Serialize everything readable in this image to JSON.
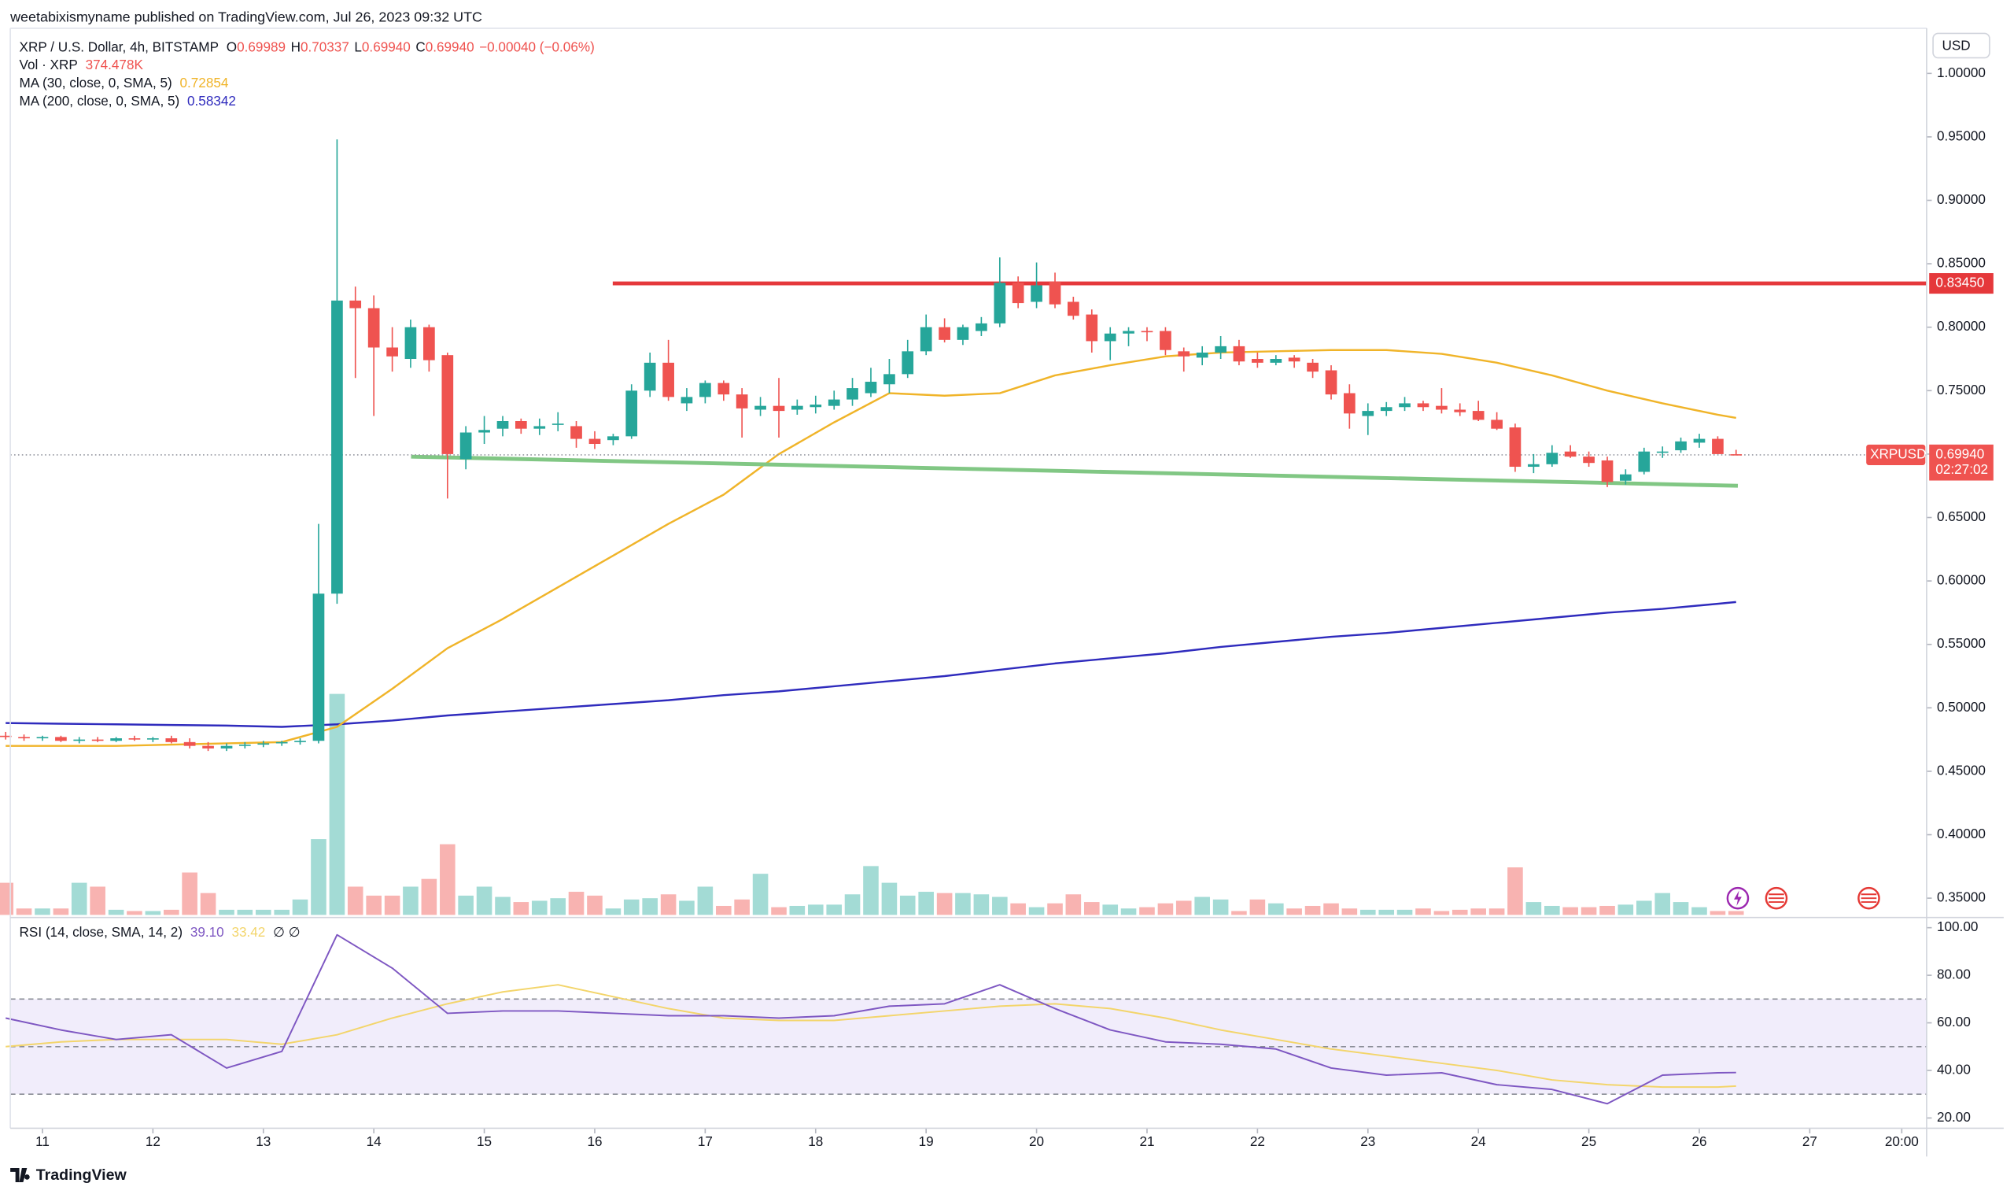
{
  "header": {
    "published": "weetabixismyname published on TradingView.com, Jul 26, 2023 09:32 UTC"
  },
  "footer": {
    "brand": "TradingView"
  },
  "chart_data": [
    {
      "type": "candlestick",
      "title": "XRP / U.S. Dollar, 4h, BITSTAMP",
      "ohlc_legend": [
        {
          "key": "O",
          "value": "0.69989"
        },
        {
          "key": "H",
          "value": "0.70337"
        },
        {
          "key": "L",
          "value": "0.69940"
        },
        {
          "key": "C",
          "value": "0.69940"
        }
      ],
      "change": "−0.00040 (−0.06%)",
      "currency": "USD",
      "up_color": "#26a69a",
      "down_color": "#ef5350",
      "xlim": [
        10.709,
        28.058
      ],
      "ylim": [
        0.3368,
        1.0356
      ],
      "yticks": [
        {
          "value": 0.35,
          "label": "0.35000"
        },
        {
          "value": 0.4,
          "label": "0.40000"
        },
        {
          "value": 0.45,
          "label": "0.45000"
        },
        {
          "value": 0.5,
          "label": "0.50000"
        },
        {
          "value": 0.55,
          "label": "0.55000"
        },
        {
          "value": 0.6,
          "label": "0.60000"
        },
        {
          "value": 0.65,
          "label": "0.65000"
        },
        {
          "value": 0.7,
          "label": "0.70000"
        },
        {
          "value": 0.75,
          "label": "0.75000"
        },
        {
          "value": 0.8,
          "label": "0.80000"
        },
        {
          "value": 0.85,
          "label": "0.85000"
        },
        {
          "value": 0.9,
          "label": "0.90000"
        },
        {
          "value": 0.95,
          "label": "0.95000"
        },
        {
          "value": 1,
          "label": "1.00000"
        }
      ],
      "x": [
        10.667,
        10.833,
        11,
        11.167,
        11.333,
        11.5,
        11.667,
        11.833,
        12,
        12.167,
        12.333,
        12.5,
        12.667,
        12.833,
        13,
        13.167,
        13.333,
        13.5,
        13.667,
        13.833,
        14,
        14.167,
        14.333,
        14.5,
        14.667,
        14.833,
        15,
        15.167,
        15.333,
        15.5,
        15.667,
        15.833,
        16,
        16.167,
        16.333,
        16.5,
        16.667,
        16.833,
        17,
        17.167,
        17.333,
        17.5,
        17.667,
        17.833,
        18,
        18.167,
        18.333,
        18.5,
        18.667,
        18.833,
        19,
        19.167,
        19.333,
        19.5,
        19.667,
        19.833,
        20,
        20.167,
        20.333,
        20.5,
        20.667,
        20.833,
        21,
        21.167,
        21.333,
        21.5,
        21.667,
        21.833,
        22,
        22.167,
        22.333,
        22.5,
        22.667,
        22.833,
        23,
        23.167,
        23.333,
        23.5,
        23.667,
        23.833,
        24,
        24.167,
        24.333,
        24.5,
        24.667,
        24.833,
        25,
        25.167,
        25.333,
        25.5,
        25.667,
        25.833,
        26,
        26.167,
        26.333
      ],
      "open": [
        0.478,
        0.477,
        0.476,
        0.477,
        0.474,
        0.475,
        0.474,
        0.476,
        0.475,
        0.476,
        0.473,
        0.47,
        0.468,
        0.47,
        0.471,
        0.472,
        0.473,
        0.474,
        0.59,
        0.821,
        0.815,
        0.784,
        0.775,
        0.8,
        0.778,
        0.696,
        0.717,
        0.72,
        0.726,
        0.72,
        0.723,
        0.722,
        0.712,
        0.711,
        0.714,
        0.75,
        0.772,
        0.74,
        0.745,
        0.756,
        0.747,
        0.735,
        0.738,
        0.735,
        0.737,
        0.738,
        0.743,
        0.748,
        0.755,
        0.763,
        0.781,
        0.8,
        0.79,
        0.797,
        0.803,
        0.835,
        0.82,
        0.836,
        0.82,
        0.81,
        0.789,
        0.795,
        0.797,
        0.797,
        0.781,
        0.776,
        0.78,
        0.785,
        0.775,
        0.772,
        0.776,
        0.772,
        0.766,
        0.748,
        0.73,
        0.734,
        0.737,
        0.74,
        0.738,
        0.735,
        0.734,
        0.727,
        0.721,
        0.69,
        0.692,
        0.702,
        0.698,
        0.695,
        0.679,
        0.686,
        0.702,
        0.703,
        0.709,
        0.712,
        0.69989
      ],
      "high": [
        0.481,
        0.479,
        0.478,
        0.478,
        0.477,
        0.477,
        0.477,
        0.478,
        0.477,
        0.478,
        0.476,
        0.473,
        0.472,
        0.473,
        0.474,
        0.474,
        0.476,
        0.645,
        0.948,
        0.832,
        0.825,
        0.8,
        0.806,
        0.802,
        0.78,
        0.722,
        0.73,
        0.73,
        0.728,
        0.728,
        0.733,
        0.726,
        0.718,
        0.716,
        0.755,
        0.78,
        0.79,
        0.752,
        0.758,
        0.758,
        0.752,
        0.745,
        0.76,
        0.743,
        0.746,
        0.75,
        0.76,
        0.768,
        0.775,
        0.79,
        0.81,
        0.807,
        0.802,
        0.808,
        0.855,
        0.84,
        0.851,
        0.843,
        0.824,
        0.814,
        0.8,
        0.8,
        0.8,
        0.8,
        0.784,
        0.785,
        0.793,
        0.79,
        0.78,
        0.778,
        0.778,
        0.775,
        0.77,
        0.755,
        0.74,
        0.741,
        0.745,
        0.742,
        0.752,
        0.74,
        0.742,
        0.733,
        0.724,
        0.7,
        0.707,
        0.707,
        0.702,
        0.698,
        0.688,
        0.705,
        0.706,
        0.713,
        0.716,
        0.714,
        0.70337
      ],
      "low": [
        0.475,
        0.474,
        0.474,
        0.473,
        0.472,
        0.473,
        0.473,
        0.474,
        0.473,
        0.472,
        0.468,
        0.466,
        0.466,
        0.468,
        0.469,
        0.47,
        0.471,
        0.472,
        0.582,
        0.76,
        0.73,
        0.765,
        0.768,
        0.765,
        0.665,
        0.688,
        0.708,
        0.714,
        0.716,
        0.715,
        0.718,
        0.705,
        0.704,
        0.707,
        0.712,
        0.745,
        0.742,
        0.734,
        0.74,
        0.742,
        0.713,
        0.73,
        0.713,
        0.731,
        0.732,
        0.735,
        0.738,
        0.745,
        0.748,
        0.76,
        0.778,
        0.788,
        0.786,
        0.793,
        0.8,
        0.815,
        0.815,
        0.815,
        0.806,
        0.78,
        0.774,
        0.785,
        0.789,
        0.778,
        0.765,
        0.77,
        0.775,
        0.77,
        0.768,
        0.77,
        0.768,
        0.76,
        0.743,
        0.72,
        0.715,
        0.73,
        0.734,
        0.734,
        0.732,
        0.73,
        0.726,
        0.719,
        0.686,
        0.685,
        0.69,
        0.697,
        0.69,
        0.674,
        0.676,
        0.684,
        0.697,
        0.701,
        0.705,
        0.7,
        0.6994
      ],
      "close": [
        0.477,
        0.476,
        0.477,
        0.474,
        0.475,
        0.474,
        0.476,
        0.475,
        0.476,
        0.473,
        0.47,
        0.468,
        0.47,
        0.471,
        0.472,
        0.473,
        0.474,
        0.59,
        0.821,
        0.815,
        0.784,
        0.777,
        0.8,
        0.774,
        0.7,
        0.717,
        0.719,
        0.726,
        0.72,
        0.722,
        0.724,
        0.712,
        0.708,
        0.714,
        0.75,
        0.772,
        0.745,
        0.745,
        0.756,
        0.747,
        0.736,
        0.738,
        0.734,
        0.738,
        0.739,
        0.743,
        0.752,
        0.757,
        0.763,
        0.781,
        0.8,
        0.79,
        0.8,
        0.803,
        0.835,
        0.819,
        0.833,
        0.818,
        0.809,
        0.789,
        0.795,
        0.797,
        0.796,
        0.782,
        0.777,
        0.78,
        0.785,
        0.773,
        0.772,
        0.775,
        0.773,
        0.765,
        0.747,
        0.732,
        0.734,
        0.737,
        0.74,
        0.737,
        0.735,
        0.733,
        0.727,
        0.72,
        0.69,
        0.692,
        0.701,
        0.698,
        0.693,
        0.678,
        0.684,
        0.702,
        0.702,
        0.71,
        0.712,
        0.7,
        0.6994
      ],
      "volume": {
        "name": "Vol · XRP",
        "last_label": "374.478K",
        "up_color": "#a3dbd5",
        "down_color": "#f8b3b1",
        "values": [
          3125000,
          625000,
          625000,
          625000,
          3125000,
          2750000,
          500000,
          375000,
          375000,
          500000,
          4125000,
          2125000,
          500000,
          500000,
          500000,
          500000,
          1500000,
          7375000,
          21500000,
          2750000,
          1875000,
          1875000,
          2750000,
          3500000,
          6875000,
          1875000,
          2750000,
          1750000,
          1250000,
          1375000,
          1625000,
          2250000,
          1875000,
          625000,
          1500000,
          1625000,
          2000000,
          1375000,
          2750000,
          875000,
          1500000,
          4000000,
          750000,
          875000,
          1000000,
          1000000,
          2000000,
          4750000,
          3125000,
          1875000,
          2250000,
          2125000,
          2125000,
          2000000,
          1750000,
          1125000,
          750000,
          1125000,
          2000000,
          1250000,
          1000000,
          625000,
          750000,
          1125000,
          1375000,
          1750000,
          1500000,
          375000,
          1500000,
          1125000,
          625000,
          875000,
          1125000,
          625000,
          500000,
          500000,
          500000,
          625000,
          375000,
          500000,
          625000,
          625000,
          4625000,
          1250000,
          875000,
          750000,
          750000,
          875000,
          1000000,
          1375000,
          2125000,
          1250000,
          750000,
          375000,
          374478
        ]
      },
      "series": [
        {
          "name": "MA (30, close, 0, SMA, 5)",
          "color": "#f0b429",
          "last_label": "0.72854",
          "x": [
            10.667,
            11.167,
            11.667,
            12.167,
            12.667,
            13.167,
            13.667,
            14.167,
            14.667,
            15.167,
            15.667,
            16.167,
            16.667,
            17.167,
            17.667,
            18.167,
            18.667,
            19.167,
            19.667,
            20.167,
            20.667,
            21.167,
            21.667,
            22.167,
            22.667,
            23.167,
            23.667,
            24.167,
            24.667,
            25.167,
            25.667,
            26.167,
            26.333
          ],
          "values": [
            0.47,
            0.47,
            0.47,
            0.471,
            0.472,
            0.473,
            0.485,
            0.515,
            0.547,
            0.57,
            0.595,
            0.62,
            0.645,
            0.668,
            0.7,
            0.725,
            0.748,
            0.746,
            0.748,
            0.762,
            0.77,
            0.777,
            0.78,
            0.781,
            0.782,
            0.782,
            0.779,
            0.772,
            0.762,
            0.75,
            0.74,
            0.731,
            0.72854
          ]
        },
        {
          "name": "MA (200, close, 0, SMA, 5)",
          "color": "#2f2bbd",
          "last_label": "0.58342",
          "x": [
            10.667,
            11.167,
            11.667,
            12.167,
            12.667,
            13.167,
            13.667,
            14.167,
            14.667,
            15.167,
            15.667,
            16.167,
            16.667,
            17.167,
            17.667,
            18.167,
            18.667,
            19.167,
            19.667,
            20.167,
            20.667,
            21.167,
            21.667,
            22.167,
            22.667,
            23.167,
            23.667,
            24.167,
            24.667,
            25.167,
            25.667,
            26.167,
            26.333
          ],
          "values": [
            0.488,
            0.4875,
            0.487,
            0.4865,
            0.486,
            0.485,
            0.487,
            0.49,
            0.494,
            0.497,
            0.5,
            0.503,
            0.506,
            0.51,
            0.513,
            0.517,
            0.521,
            0.525,
            0.53,
            0.535,
            0.539,
            0.543,
            0.548,
            0.552,
            0.556,
            0.559,
            0.563,
            0.567,
            0.571,
            0.575,
            0.578,
            0.582,
            0.58342
          ]
        }
      ],
      "drawings": [
        {
          "color": "#e5383b",
          "x": [
            16.163,
            28.058
          ],
          "values": [
            0.8345,
            0.8345
          ],
          "label": "0.83450"
        },
        {
          "color": "#81c784",
          "x": [
            14.337,
            26.349
          ],
          "values": [
            0.698,
            0.675
          ]
        }
      ],
      "last_price": {
        "symbol": "XRPUSD",
        "value": 0.6994,
        "label": "0.69940",
        "countdown": "02:27:02",
        "color": "#ef5350"
      }
    },
    {
      "type": "line",
      "title": "RSI (14, close, SMA, 14, 2)",
      "legend_extra": "∅ ∅",
      "xlim": [
        10.709,
        28.058
      ],
      "ylim": [
        15.7,
        104.3
      ],
      "yticks": [
        {
          "value": 20,
          "label": "20.00"
        },
        {
          "value": 40,
          "label": "40.00"
        },
        {
          "value": 60,
          "label": "60.00"
        },
        {
          "value": 80,
          "label": "80.00"
        },
        {
          "value": 100,
          "label": "100.00"
        }
      ],
      "xticks": [
        11,
        12,
        13,
        14,
        15,
        16,
        17,
        18,
        19,
        20,
        21,
        22,
        23,
        24,
        25,
        26,
        27,
        {
          "value": 27.833,
          "label": "20:00"
        }
      ],
      "bands": [
        30,
        50,
        70
      ],
      "band_fill": "#f1edfb",
      "band_color": "#8a8d96",
      "series": [
        {
          "color": "#7e57c2",
          "last_label": "39.10",
          "x": [
            10.667,
            11.167,
            11.667,
            12.167,
            12.667,
            13.167,
            13.667,
            14.167,
            14.667,
            15.167,
            15.667,
            16.167,
            16.667,
            17.167,
            17.667,
            18.167,
            18.667,
            19.167,
            19.667,
            20.167,
            20.667,
            21.167,
            21.667,
            22.167,
            22.667,
            23.167,
            23.667,
            24.167,
            24.667,
            25.167,
            25.667,
            26.167,
            26.333
          ],
          "values": [
            62,
            57,
            53,
            55,
            41,
            48,
            97,
            83,
            64,
            65,
            65,
            64,
            63,
            63,
            62,
            63,
            67,
            68,
            76,
            66,
            57,
            52,
            51,
            49,
            41,
            38,
            39,
            34,
            32,
            26,
            38,
            39,
            39.1
          ]
        },
        {
          "color": "#f3d56b",
          "last_label": "33.42",
          "x": [
            10.667,
            11.167,
            11.667,
            12.167,
            12.667,
            13.167,
            13.667,
            14.167,
            14.667,
            15.167,
            15.667,
            16.167,
            16.667,
            17.167,
            17.667,
            18.167,
            18.667,
            19.167,
            19.667,
            20.167,
            20.667,
            21.167,
            21.667,
            22.167,
            22.667,
            23.167,
            23.667,
            24.167,
            24.667,
            25.167,
            25.667,
            26.167,
            26.333
          ],
          "values": [
            50,
            52,
            53,
            53,
            53,
            51,
            55,
            62,
            68,
            73,
            76,
            71,
            66,
            62,
            61,
            61,
            63,
            65,
            67,
            68,
            66,
            62,
            57,
            53,
            49,
            46,
            43,
            40,
            36,
            34,
            33,
            33,
            33.42
          ]
        }
      ]
    }
  ]
}
